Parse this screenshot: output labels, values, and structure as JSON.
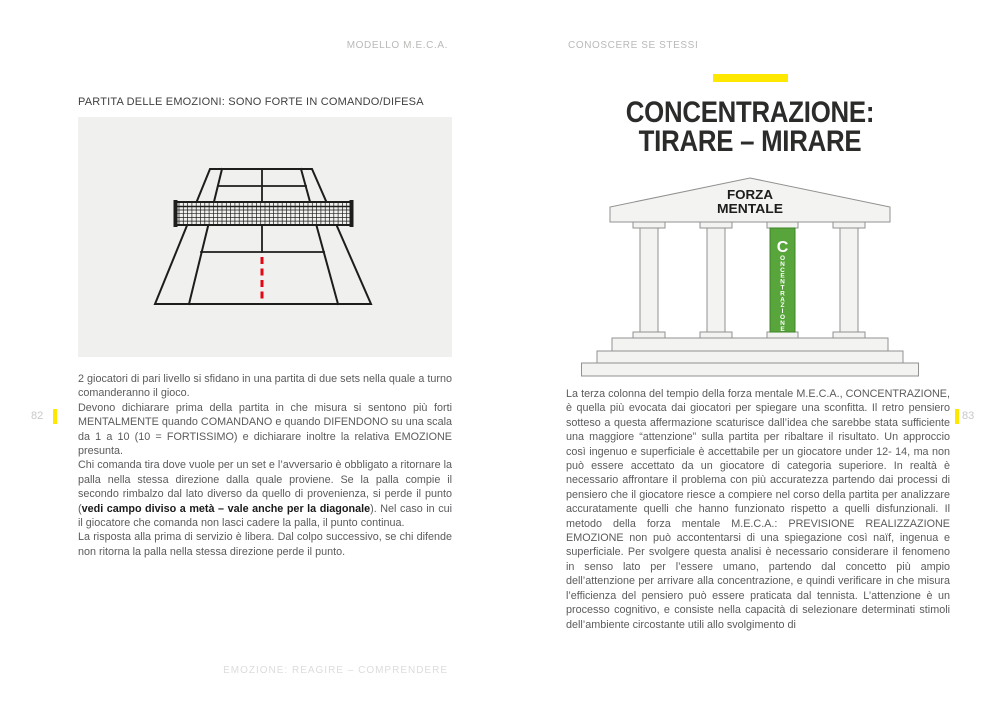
{
  "spread": {
    "left": {
      "running_header": "MODELLO M.E.C.A.",
      "page_number": "82",
      "section_title": "PARTITA DELLE EMOZIONI: SONO FORTE IN COMANDO/DIFESA",
      "paragraphs": [
        {
          "segments": [
            {
              "text": "2 giocatori di pari livello si sfidano in una partita di due sets nella quale a turno comanderanno il gioco.",
              "bold": false
            }
          ]
        },
        {
          "segments": [
            {
              "text": "Devono dichiarare prima della partita in che misura si sentono più forti MENTALMENTE quando COMANDANO e quando DIFENDONO su una scala da 1 a 10 (10 = FORTISSIMO) e dichiarare inoltre la relativa EMOZIONE presunta.",
              "bold": false
            }
          ]
        },
        {
          "segments": [
            {
              "text": "Chi comanda tira dove vuole per un set e l’avversario è obbligato a ritornare la palla nella stessa direzione dalla quale proviene. Se la palla compie il secondo rimbalzo dal lato diverso da quello di provenienza, si perde il punto (",
              "bold": false
            },
            {
              "text": "vedi campo diviso a metà – vale anche per la diagonale",
              "bold": true
            },
            {
              "text": "). Nel caso in cui il giocatore che comanda non lasci cadere la palla, il punto continua.",
              "bold": false
            }
          ]
        },
        {
          "segments": [
            {
              "text": "La risposta alla prima di servizio è libera. Dal colpo successivo, se chi difende non ritorna la palla nella stessa direzione perde il punto.",
              "bold": false
            }
          ]
        }
      ],
      "footer": "EMOZIONE: REAGIRE – COMPRENDERE",
      "diagram": {
        "type": "tennis-court-perspective",
        "dashed_center_line_color": "#e30613"
      }
    },
    "right": {
      "running_header": "CONOSCERE SE STESSI",
      "page_number": "83",
      "title_lines": [
        "CONCENTRAZIONE:",
        "TIRARE – MIRARE"
      ],
      "temple": {
        "pediment_lines": [
          "FORZA",
          "MENTALE"
        ],
        "column_count": 4,
        "highlight_column_index": 3,
        "highlight_initial": "C",
        "highlight_text": "CONCENTRAZIONE",
        "highlight_color": "#58a53c"
      },
      "body": "La terza colonna del tempio della forza mentale M.E.C.A., CONCENTRAZIONE, è quella più evocata dai giocatori per spiegare una sconfitta. Il retro pensiero sotteso a questa affermazione scaturisce dall’idea che sarebbe stata sufficiente una maggiore “attenzione” sulla partita per ribaltare il risultato. Un approccio così ingenuo e superficiale è accettabile per un giocatore under 12- 14, ma non può essere accettato da un giocatore di categoria superiore. In realtà è necessario affrontare il problema con più accuratezza partendo dai processi di pensiero che il giocatore riesce a compiere nel corso della partita per analizzare accuratamente quelli che hanno funzionato rispetto a quelli disfunzionali. Il metodo della forza mentale M.E.C.A.: PREVISIONE REALIZZAZIONE EMOZIONE non può accontentarsi di una spiegazione così naïf, ingenua e superficiale. Per svolgere questa analisi è necessario considerare il fenomeno in senso lato per l’essere umano, partendo dal concetto più ampio dell’attenzione per arrivare alla concentrazione, e quindi verificare in che misura l’efficienza del pensiero può essere praticata dal tennista. L’attenzione è un processo cognitivo, e consiste nella capacità di selezionare determinati stimoli dell’ambiente circostante utili allo svolgimento di"
    },
    "colors": {
      "accent_yellow": "#ffe800",
      "column_green": "#58a53c",
      "dash_red": "#e30613",
      "court_line": "#1d1d1b",
      "panel_gray": "#f0f0ee"
    }
  }
}
